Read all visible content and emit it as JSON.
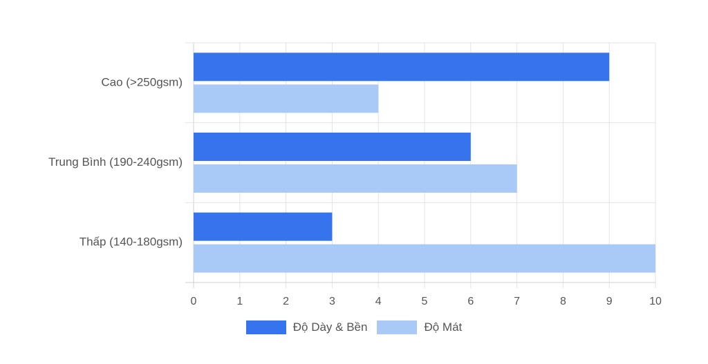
{
  "chart_data": {
    "type": "bar",
    "orientation": "horizontal",
    "categories": [
      "Cao (>250gsm)",
      "Trung Bình (190-240gsm)",
      "Thấp (140-180gsm)"
    ],
    "series": [
      {
        "name": "Độ Dày & Bền",
        "values": [
          9,
          6,
          3
        ],
        "color": "#3574ec"
      },
      {
        "name": "Độ Mát",
        "values": [
          4,
          7,
          10
        ],
        "color": "#a9c9f6"
      }
    ],
    "xlim": [
      0,
      10
    ],
    "xticks": [
      "0",
      "1",
      "2",
      "3",
      "4",
      "5",
      "6",
      "7",
      "8",
      "9",
      "10"
    ],
    "grid": true,
    "legend_position": "bottom"
  }
}
